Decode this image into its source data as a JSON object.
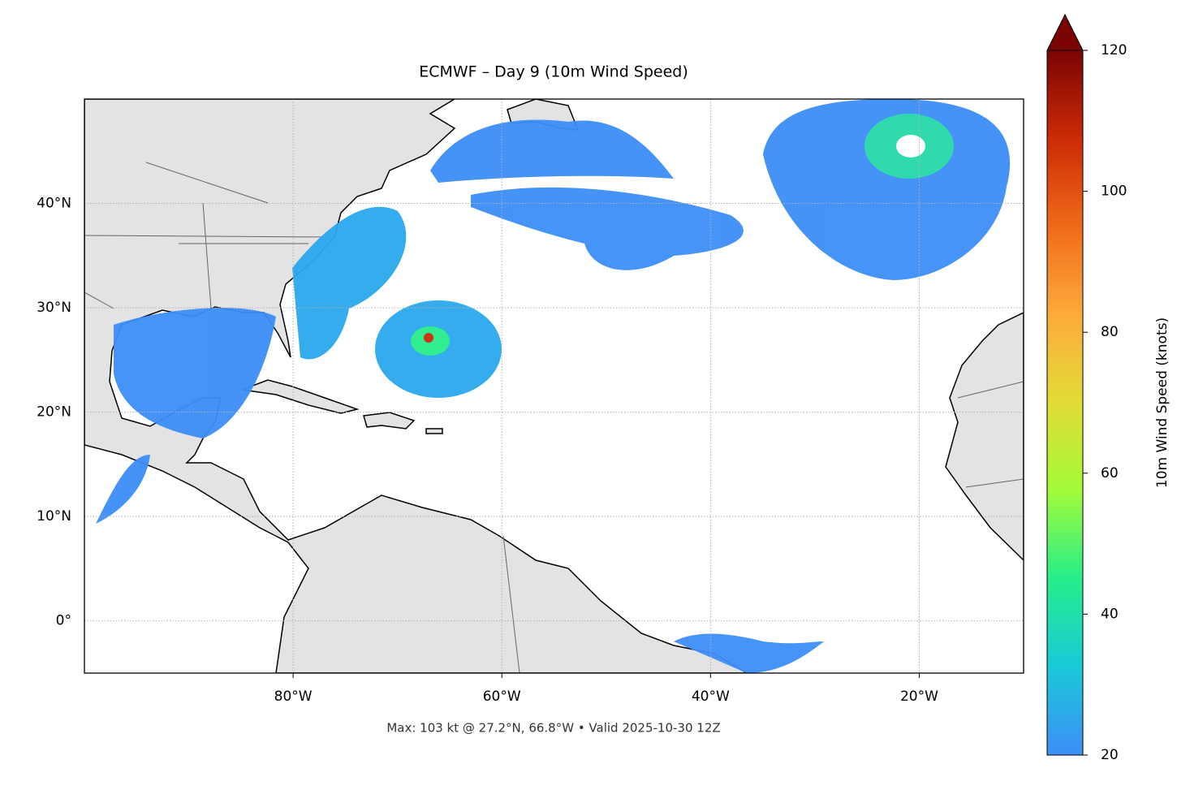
{
  "title": "ECMWF – Day 9 (10m Wind Speed)",
  "footer": "Max: 103 kt @ 27.2°N, 66.8°W • Valid 2025-10-30 12Z",
  "map": {
    "xlim": [
      -100,
      -10
    ],
    "ylim": [
      -5,
      50
    ],
    "xticks": [
      {
        "value": -80,
        "label": "80°W"
      },
      {
        "value": -60,
        "label": "60°W"
      },
      {
        "value": -40,
        "label": "40°W"
      },
      {
        "value": -20,
        "label": "20°W"
      }
    ],
    "yticks": [
      {
        "value": 0,
        "label": "0°"
      },
      {
        "value": 10,
        "label": "10°N"
      },
      {
        "value": 20,
        "label": "20°N"
      },
      {
        "value": 30,
        "label": "30°N"
      },
      {
        "value": 40,
        "label": "40°N"
      }
    ],
    "grid": true,
    "land_color": "#e3e3e3"
  },
  "colorbar": {
    "label": "10m Wind Speed (knots)",
    "lim": [
      20,
      120
    ],
    "ticks": [
      20,
      40,
      60,
      80,
      100,
      120
    ],
    "colormap": [
      "#3d8ef8",
      "#1ac9d9",
      "#25ee8a",
      "#a3fb3a",
      "#e2dc37",
      "#fdab3b",
      "#f06a1a",
      "#cb2b06",
      "#7a0403"
    ],
    "extend_color": "#7a0403"
  }
}
